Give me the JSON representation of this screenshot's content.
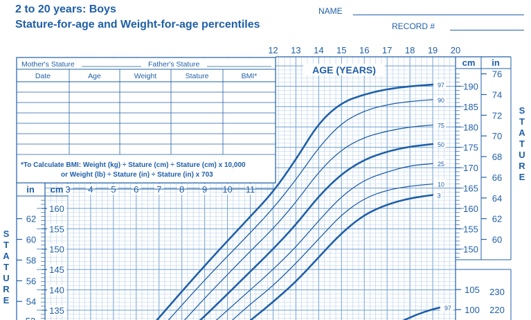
{
  "header": {
    "title": "2 to 20 years: Boys",
    "subtitle": "Stature-for-age and Weight-for-age percentiles",
    "name_label": "NAME",
    "record_label": "RECORD #"
  },
  "parent_stature": {
    "mother_label": "Mother's Stature",
    "father_label": "Father's Stature"
  },
  "table": {
    "columns": [
      "Date",
      "Age",
      "Weight",
      "Stature",
      "BMI*"
    ],
    "rows": 7
  },
  "bmi_note": {
    "line1": "*To Calculate BMI: Weight (kg) ÷ Stature (cm) ÷ Stature (cm) x 10,000",
    "line2": "or Weight (lb) ÷ Stature (in) ÷ Stature (in) x 703"
  },
  "side_labels": {
    "left": [
      "S",
      "T",
      "A",
      "T",
      "U",
      "R",
      "E"
    ],
    "right": [
      "S",
      "T",
      "A",
      "T",
      "U",
      "R",
      "E"
    ]
  },
  "colors": {
    "ink": "#1f5fa8",
    "grid": "#6f9fd0",
    "grid_minor": "#b3cde8"
  },
  "chart_data": {
    "type": "line",
    "x_label": "AGE (YEARS)",
    "age_ticks_top": [
      "12",
      "13",
      "14",
      "15",
      "16",
      "17",
      "18",
      "19",
      "20"
    ],
    "age_ticks_mid": [
      "3",
      "4",
      "5",
      "6",
      "7",
      "8",
      "9",
      "10",
      "11"
    ],
    "xlim": [
      2,
      20
    ],
    "y_cm_ticks_right_upper": [
      "190",
      "185",
      "180",
      "175",
      "170",
      "165",
      "160",
      "155",
      "150"
    ],
    "y_in_ticks_right_upper": [
      "76",
      "74",
      "72",
      "70",
      "68",
      "66",
      "64",
      "62",
      "60"
    ],
    "y_cm_ticks_left": [
      "160",
      "155",
      "150",
      "145",
      "140",
      "135"
    ],
    "y_in_ticks_left": [
      "62",
      "60",
      "58",
      "56",
      "54"
    ],
    "y_cm_ticks_right_lower": [
      "105",
      "100"
    ],
    "y_lb_ticks_right_lower": [
      "230",
      "220"
    ],
    "units": {
      "cm": "cm",
      "in": "in"
    },
    "ylim_cm": [
      130,
      193
    ],
    "series": [
      {
        "name": "97",
        "role": "stature",
        "points": [
          [
            6.5,
            130
          ],
          [
            9,
            146
          ],
          [
            11,
            158
          ],
          [
            12,
            164
          ],
          [
            13,
            172
          ],
          [
            14,
            181
          ],
          [
            15,
            186
          ],
          [
            16,
            188
          ],
          [
            17,
            189.3
          ],
          [
            18,
            190
          ],
          [
            19,
            190.4
          ]
        ]
      },
      {
        "name": "90",
        "role": "stature",
        "points": [
          [
            7,
            130
          ],
          [
            9,
            142.5
          ],
          [
            11,
            154
          ],
          [
            12,
            160
          ],
          [
            13,
            167
          ],
          [
            14,
            175
          ],
          [
            15,
            181
          ],
          [
            16,
            184
          ],
          [
            17,
            185.5
          ],
          [
            18,
            186.3
          ],
          [
            19,
            186.7
          ]
        ]
      },
      {
        "name": "75",
        "role": "stature",
        "points": [
          [
            7.7,
            130
          ],
          [
            9,
            138
          ],
          [
            11,
            149.5
          ],
          [
            12,
            155
          ],
          [
            13,
            161.5
          ],
          [
            14,
            169
          ],
          [
            15,
            174.5
          ],
          [
            16,
            177.5
          ],
          [
            17,
            179
          ],
          [
            18,
            180
          ],
          [
            19,
            180.5
          ]
        ]
      },
      {
        "name": "50",
        "role": "stature",
        "points": [
          [
            8.3,
            130
          ],
          [
            9,
            133.5
          ],
          [
            11,
            144.5
          ],
          [
            12,
            150
          ],
          [
            13,
            156
          ],
          [
            14,
            163
          ],
          [
            15,
            168.5
          ],
          [
            16,
            172
          ],
          [
            17,
            174
          ],
          [
            18,
            175.2
          ],
          [
            19,
            175.8
          ]
        ]
      },
      {
        "name": "25",
        "role": "stature",
        "points": [
          [
            9,
            130
          ],
          [
            11,
            140
          ],
          [
            12,
            145
          ],
          [
            13,
            150.5
          ],
          [
            14,
            157
          ],
          [
            15,
            163
          ],
          [
            16,
            167
          ],
          [
            17,
            169
          ],
          [
            18,
            170.5
          ],
          [
            19,
            171
          ]
        ]
      },
      {
        "name": "10",
        "role": "stature",
        "points": [
          [
            9.7,
            130
          ],
          [
            11,
            136.5
          ],
          [
            12,
            141
          ],
          [
            13,
            146.5
          ],
          [
            14,
            152.5
          ],
          [
            15,
            158.5
          ],
          [
            16,
            162.5
          ],
          [
            17,
            164.5
          ],
          [
            18,
            165.5
          ],
          [
            19,
            166
          ]
        ]
      },
      {
        "name": "3",
        "role": "stature",
        "points": [
          [
            10.5,
            130
          ],
          [
            11,
            132.5
          ],
          [
            12,
            137
          ],
          [
            13,
            142
          ],
          [
            14,
            148
          ],
          [
            15,
            154
          ],
          [
            16,
            158.5
          ],
          [
            17,
            161
          ],
          [
            18,
            162.5
          ],
          [
            19,
            163.3
          ]
        ]
      },
      {
        "name": "97",
        "role": "weight",
        "points": [
          [
            17.6,
            97
          ],
          [
            18.3,
            98.8
          ],
          [
            19,
            100.1
          ],
          [
            19.3,
            100.5
          ]
        ]
      }
    ]
  }
}
